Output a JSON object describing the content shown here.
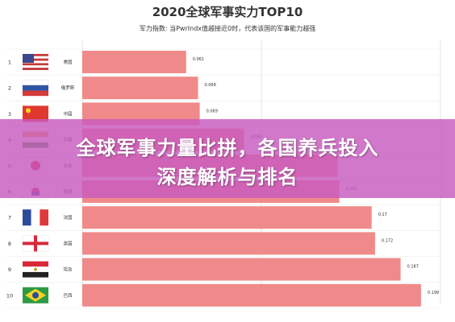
{
  "chart_data": {
    "type": "bar",
    "title": "2020全球军事实力TOP10",
    "subtitle": "军力指数: 当PwrIndx值越接近0时，代表该国的军事能力越强",
    "ranks": [
      "1",
      "2",
      "3",
      "4",
      "5",
      "6",
      "7",
      "8",
      "9",
      "10"
    ],
    "categories": [
      "美国",
      "俄罗斯",
      "中国",
      "印度",
      "日本",
      "韩国",
      "法国",
      "英国",
      "埃及",
      "巴西"
    ],
    "values": [
      0.061,
      0.068,
      0.069,
      0.095,
      0.15,
      0.151,
      0.17,
      0.172,
      0.187,
      0.199
    ],
    "value_labels": [
      "0.061",
      "0.068",
      "0.069",
      "0.095",
      "",
      "0.151",
      "0.17",
      "0.172",
      "0.187",
      "0.199"
    ],
    "flags": [
      "us-flag",
      "russia-flag",
      "china-flag",
      "india-flag",
      "japan-flag",
      "south-korea-flag",
      "france-flag",
      "uk-flag",
      "egypt-flag",
      "brazil-flag"
    ],
    "bar_color": "#f08a8a",
    "grid": true,
    "xlim": [
      0,
      0.21
    ]
  },
  "overlay": {
    "line1": "全球军事力量比拼，各国养兵投入",
    "line2": "深度解析与排名",
    "color": "#c85abe"
  }
}
